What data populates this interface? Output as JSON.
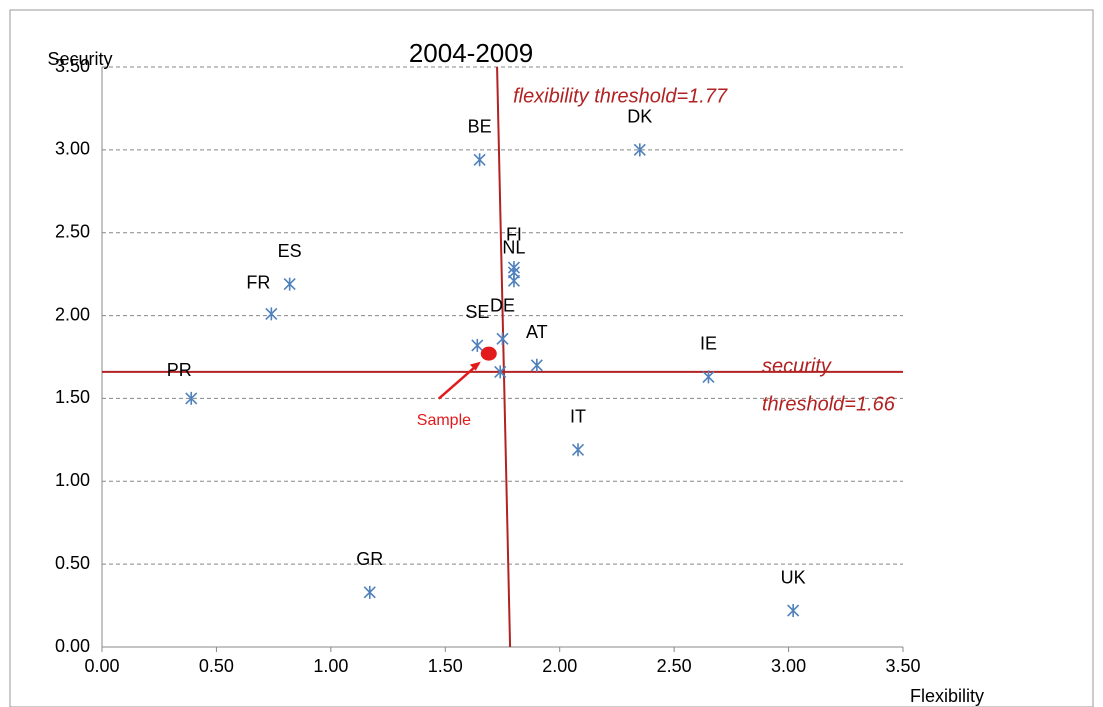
{
  "chart_data": {
    "type": "scatter",
    "title": "2004-2009",
    "x_label": "Flexibility",
    "y_label": "Security",
    "xlim": [
      0,
      3.5
    ],
    "ylim": [
      0,
      3.5
    ],
    "xticks": [
      {
        "value": 0,
        "label": "0.00"
      },
      {
        "value": 0.5,
        "label": "0.50"
      },
      {
        "value": 1,
        "label": "1.00"
      },
      {
        "value": 1.5,
        "label": "1.50"
      },
      {
        "value": 2,
        "label": "2.00"
      },
      {
        "value": 2.5,
        "label": "2.50"
      },
      {
        "value": 3,
        "label": "3.00"
      },
      {
        "value": 3.5,
        "label": "3.50"
      }
    ],
    "yticks": [
      {
        "value": 0,
        "label": "0.00"
      },
      {
        "value": 0.5,
        "label": "0.50"
      },
      {
        "value": 1,
        "label": "1.00"
      },
      {
        "value": 1.5,
        "label": "1.50"
      },
      {
        "value": 2,
        "label": "2.00"
      },
      {
        "value": 2.5,
        "label": "2.50"
      },
      {
        "value": 3,
        "label": "3.00"
      },
      {
        "value": 3.5,
        "label": "3.50"
      }
    ],
    "grid": true,
    "series": [
      {
        "color": "#4f81bd",
        "marker": "asterisk",
        "x": [
          0.39,
          0.74,
          0.82,
          1.17,
          1.65,
          1.64,
          1.75,
          1.74,
          1.8,
          1.8,
          1.8,
          1.9,
          2.08,
          2.35,
          2.65,
          3.02
        ],
        "values": [
          1.5,
          2.01,
          2.19,
          0.33,
          2.94,
          1.82,
          1.86,
          1.66,
          2.29,
          2.21,
          2.26,
          1.7,
          1.19,
          3.0,
          1.63,
          0.22
        ],
        "labels": [
          "PR",
          "FR",
          "ES",
          "GR",
          "BE",
          "SE",
          "DE",
          null,
          "FI",
          "NL",
          null,
          "AT",
          "IT",
          "DK",
          "IE",
          "UK"
        ]
      },
      {
        "color": "#e31a1c",
        "marker": "dot",
        "x": [
          1.69
        ],
        "values": [
          1.77
        ],
        "labels": [
          "Sample"
        ]
      }
    ],
    "thresholds": {
      "color": "#b22222",
      "x": 1.77,
      "y": 1.66,
      "x_label": "flexibility threshold=1.77",
      "y_label": [
        "security",
        "threshold=1.66"
      ]
    }
  }
}
